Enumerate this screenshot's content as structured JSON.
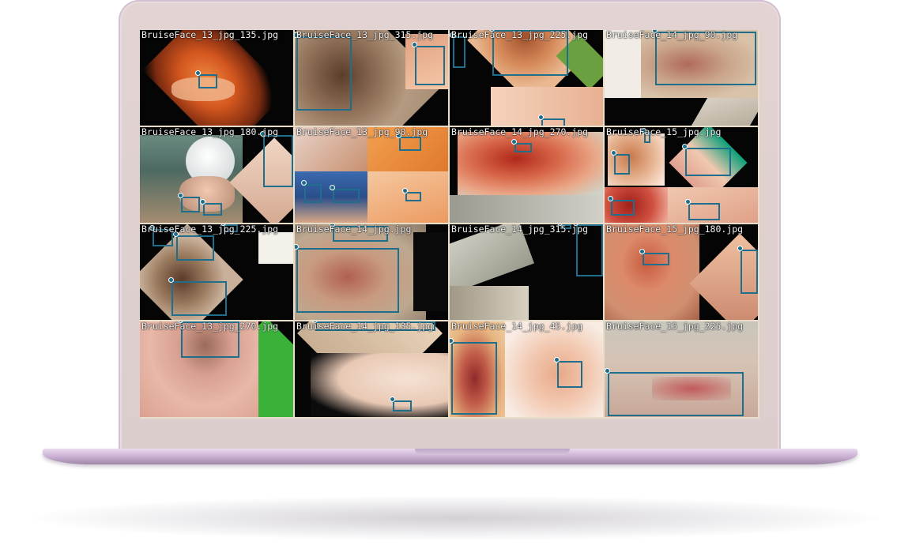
{
  "grid": {
    "tiles": [
      {
        "title": "BruiseFace_13_jpg_135.jpg"
      },
      {
        "title": "BruiseFace_13_jpg_315.jpg"
      },
      {
        "title": "BruiseFace_13_jpg_225.jpg"
      },
      {
        "title": "BruiseFace_14_jpg_90.jpg"
      },
      {
        "title": "BruiseFace_13_jpg_180.jpg"
      },
      {
        "title": "BruiseFace_13_jpg_90.jpg"
      },
      {
        "title": "BruiseFace_14_jpg_270.jpg"
      },
      {
        "title": "BruiseFace_15_jpg.jpg"
      },
      {
        "title": "BruiseFace_13_jpg_225.jpg"
      },
      {
        "title": "BruiseFace_14_jpg.jpg"
      },
      {
        "title": "BruiseFace_14_jpg_315.jpg"
      },
      {
        "title": "BruiseFace_15_jpg_180.jpg"
      },
      {
        "title": "BruiseFace_13_jpg_270.jpg"
      },
      {
        "title": "BruiseFace_14_jpg_135.jpg"
      },
      {
        "title": "BruiseFace_14_jpg_45.jpg"
      },
      {
        "title": "BruiseFace_15_jpg_225.jpg"
      }
    ]
  },
  "colors": {
    "bbox": "#1e6e8c",
    "laptop_body": "#e3d3d3",
    "laptop_base": "#c7add0"
  },
  "icons": [
    "laptop-device"
  ]
}
